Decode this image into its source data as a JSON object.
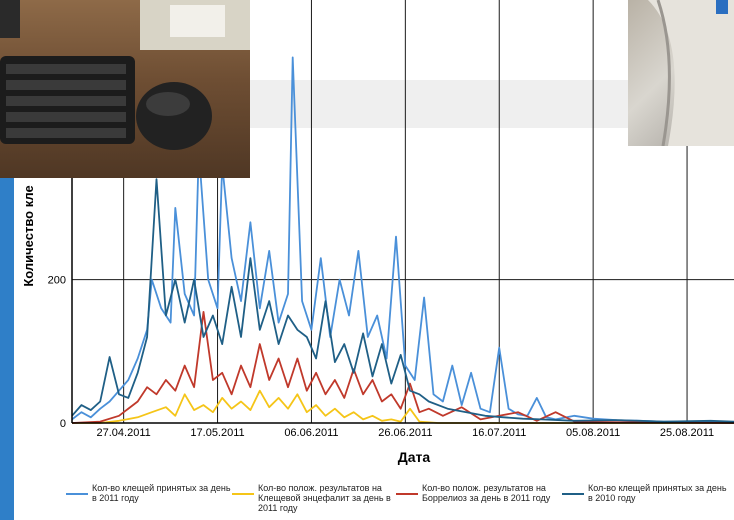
{
  "chart_data": {
    "type": "line",
    "xlabel": "Дата",
    "ylabel": "Количество кле",
    "y_ticks": [
      0,
      200
    ],
    "x_ticks": [
      "27.04.2011",
      "17.05.2011",
      "06.06.2011",
      "26.06.2011",
      "16.07.2011",
      "05.08.2011",
      "25.08.2011"
    ],
    "x_start": "2011-04-16",
    "x_end": "2011-09-04",
    "ylim": [
      0,
      590
    ],
    "grid": true,
    "legend_position": "bottom",
    "series": [
      {
        "name": "Кол-во клещей принятых за день в 2011 году",
        "color": "#4a90d9",
        "points": [
          [
            "2011-04-16",
            5
          ],
          [
            "2011-04-18",
            15
          ],
          [
            "2011-04-20",
            8
          ],
          [
            "2011-04-22",
            20
          ],
          [
            "2011-04-24",
            30
          ],
          [
            "2011-04-26",
            45
          ],
          [
            "2011-04-28",
            60
          ],
          [
            "2011-04-30",
            90
          ],
          [
            "2011-05-02",
            130
          ],
          [
            "2011-05-03",
            200
          ],
          [
            "2011-05-05",
            160
          ],
          [
            "2011-05-07",
            140
          ],
          [
            "2011-05-08",
            300
          ],
          [
            "2011-05-10",
            180
          ],
          [
            "2011-05-12",
            150
          ],
          [
            "2011-05-13",
            380
          ],
          [
            "2011-05-15",
            200
          ],
          [
            "2011-05-17",
            160
          ],
          [
            "2011-05-18",
            360
          ],
          [
            "2011-05-20",
            230
          ],
          [
            "2011-05-22",
            170
          ],
          [
            "2011-05-24",
            280
          ],
          [
            "2011-05-26",
            160
          ],
          [
            "2011-05-28",
            240
          ],
          [
            "2011-05-30",
            140
          ],
          [
            "2011-06-01",
            180
          ],
          [
            "2011-06-02",
            510
          ],
          [
            "2011-06-04",
            170
          ],
          [
            "2011-06-06",
            130
          ],
          [
            "2011-06-08",
            230
          ],
          [
            "2011-06-10",
            120
          ],
          [
            "2011-06-12",
            200
          ],
          [
            "2011-06-14",
            150
          ],
          [
            "2011-06-16",
            240
          ],
          [
            "2011-06-18",
            120
          ],
          [
            "2011-06-20",
            150
          ],
          [
            "2011-06-22",
            90
          ],
          [
            "2011-06-24",
            260
          ],
          [
            "2011-06-26",
            80
          ],
          [
            "2011-06-28",
            60
          ],
          [
            "2011-06-30",
            175
          ],
          [
            "2011-07-02",
            40
          ],
          [
            "2011-07-04",
            30
          ],
          [
            "2011-07-06",
            80
          ],
          [
            "2011-07-08",
            25
          ],
          [
            "2011-07-10",
            70
          ],
          [
            "2011-07-12",
            20
          ],
          [
            "2011-07-14",
            15
          ],
          [
            "2011-07-16",
            105
          ],
          [
            "2011-07-18",
            20
          ],
          [
            "2011-07-20",
            12
          ],
          [
            "2011-07-22",
            10
          ],
          [
            "2011-07-24",
            35
          ],
          [
            "2011-07-26",
            8
          ],
          [
            "2011-07-28",
            5
          ],
          [
            "2011-08-01",
            10
          ],
          [
            "2011-08-05",
            6
          ],
          [
            "2011-08-10",
            4
          ],
          [
            "2011-08-15",
            3
          ],
          [
            "2011-08-20",
            2
          ],
          [
            "2011-08-25",
            2
          ],
          [
            "2011-08-30",
            1
          ],
          [
            "2011-09-04",
            1
          ]
        ]
      },
      {
        "name": "Кол-во полож. результатов на Клещевой энцефалит за день в 2011 году",
        "color": "#f5c518",
        "points": [
          [
            "2011-04-16",
            0
          ],
          [
            "2011-04-22",
            0
          ],
          [
            "2011-04-26",
            3
          ],
          [
            "2011-04-30",
            8
          ],
          [
            "2011-05-03",
            15
          ],
          [
            "2011-05-06",
            22
          ],
          [
            "2011-05-08",
            10
          ],
          [
            "2011-05-10",
            40
          ],
          [
            "2011-05-12",
            18
          ],
          [
            "2011-05-14",
            25
          ],
          [
            "2011-05-16",
            15
          ],
          [
            "2011-05-18",
            35
          ],
          [
            "2011-05-20",
            20
          ],
          [
            "2011-05-22",
            30
          ],
          [
            "2011-05-24",
            18
          ],
          [
            "2011-05-26",
            45
          ],
          [
            "2011-05-28",
            22
          ],
          [
            "2011-05-30",
            35
          ],
          [
            "2011-06-01",
            20
          ],
          [
            "2011-06-03",
            40
          ],
          [
            "2011-06-05",
            15
          ],
          [
            "2011-06-07",
            25
          ],
          [
            "2011-06-09",
            10
          ],
          [
            "2011-06-11",
            20
          ],
          [
            "2011-06-13",
            8
          ],
          [
            "2011-06-15",
            15
          ],
          [
            "2011-06-17",
            5
          ],
          [
            "2011-06-19",
            10
          ],
          [
            "2011-06-21",
            3
          ],
          [
            "2011-06-23",
            5
          ],
          [
            "2011-06-25",
            2
          ],
          [
            "2011-06-27",
            20
          ],
          [
            "2011-06-29",
            2
          ],
          [
            "2011-07-03",
            0
          ],
          [
            "2011-09-04",
            0
          ]
        ]
      },
      {
        "name": "Кол-во полож. результатов на Боррелиоз за день в 2011 году",
        "color": "#c0392b",
        "points": [
          [
            "2011-04-16",
            0
          ],
          [
            "2011-04-22",
            2
          ],
          [
            "2011-04-26",
            10
          ],
          [
            "2011-04-30",
            30
          ],
          [
            "2011-05-02",
            50
          ],
          [
            "2011-05-04",
            40
          ],
          [
            "2011-05-06",
            60
          ],
          [
            "2011-05-08",
            45
          ],
          [
            "2011-05-10",
            80
          ],
          [
            "2011-05-12",
            50
          ],
          [
            "2011-05-14",
            155
          ],
          [
            "2011-05-16",
            60
          ],
          [
            "2011-05-18",
            70
          ],
          [
            "2011-05-20",
            40
          ],
          [
            "2011-05-22",
            80
          ],
          [
            "2011-05-24",
            50
          ],
          [
            "2011-05-26",
            110
          ],
          [
            "2011-05-28",
            60
          ],
          [
            "2011-05-30",
            90
          ],
          [
            "2011-06-01",
            50
          ],
          [
            "2011-06-03",
            90
          ],
          [
            "2011-06-05",
            45
          ],
          [
            "2011-06-07",
            70
          ],
          [
            "2011-06-09",
            40
          ],
          [
            "2011-06-11",
            60
          ],
          [
            "2011-06-13",
            35
          ],
          [
            "2011-06-15",
            75
          ],
          [
            "2011-06-17",
            40
          ],
          [
            "2011-06-19",
            60
          ],
          [
            "2011-06-21",
            30
          ],
          [
            "2011-06-23",
            40
          ],
          [
            "2011-06-25",
            20
          ],
          [
            "2011-06-27",
            55
          ],
          [
            "2011-06-29",
            15
          ],
          [
            "2011-07-01",
            20
          ],
          [
            "2011-07-04",
            10
          ],
          [
            "2011-07-08",
            22
          ],
          [
            "2011-07-12",
            5
          ],
          [
            "2011-07-16",
            10
          ],
          [
            "2011-07-20",
            15
          ],
          [
            "2011-07-24",
            3
          ],
          [
            "2011-07-28",
            15
          ],
          [
            "2011-08-01",
            2
          ],
          [
            "2011-08-10",
            1
          ],
          [
            "2011-09-04",
            0
          ]
        ]
      },
      {
        "name": "Кол-во клещей принятых за день в 2010 году",
        "color": "#1f5f86",
        "points": [
          [
            "2011-04-16",
            10
          ],
          [
            "2011-04-18",
            25
          ],
          [
            "2011-04-20",
            18
          ],
          [
            "2011-04-22",
            30
          ],
          [
            "2011-04-24",
            92
          ],
          [
            "2011-04-26",
            40
          ],
          [
            "2011-04-28",
            35
          ],
          [
            "2011-04-30",
            70
          ],
          [
            "2011-05-02",
            120
          ],
          [
            "2011-05-04",
            340
          ],
          [
            "2011-05-06",
            150
          ],
          [
            "2011-05-08",
            200
          ],
          [
            "2011-05-10",
            140
          ],
          [
            "2011-05-12",
            200
          ],
          [
            "2011-05-14",
            120
          ],
          [
            "2011-05-16",
            150
          ],
          [
            "2011-05-18",
            110
          ],
          [
            "2011-05-20",
            190
          ],
          [
            "2011-05-22",
            120
          ],
          [
            "2011-05-24",
            230
          ],
          [
            "2011-05-26",
            130
          ],
          [
            "2011-05-28",
            170
          ],
          [
            "2011-05-30",
            110
          ],
          [
            "2011-06-01",
            150
          ],
          [
            "2011-06-03",
            130
          ],
          [
            "2011-06-05",
            120
          ],
          [
            "2011-06-07",
            90
          ],
          [
            "2011-06-09",
            170
          ],
          [
            "2011-06-11",
            85
          ],
          [
            "2011-06-13",
            110
          ],
          [
            "2011-06-15",
            70
          ],
          [
            "2011-06-17",
            125
          ],
          [
            "2011-06-19",
            65
          ],
          [
            "2011-06-21",
            110
          ],
          [
            "2011-06-23",
            55
          ],
          [
            "2011-06-25",
            95
          ],
          [
            "2011-06-27",
            45
          ],
          [
            "2011-06-29",
            40
          ],
          [
            "2011-07-01",
            30
          ],
          [
            "2011-07-05",
            20
          ],
          [
            "2011-07-09",
            15
          ],
          [
            "2011-07-13",
            10
          ],
          [
            "2011-07-17",
            8
          ],
          [
            "2011-07-21",
            6
          ],
          [
            "2011-07-25",
            5
          ],
          [
            "2011-08-01",
            3
          ],
          [
            "2011-08-10",
            4
          ],
          [
            "2011-08-20",
            2
          ],
          [
            "2011-08-30",
            3
          ],
          [
            "2011-09-04",
            2
          ]
        ]
      }
    ]
  },
  "legend": [
    {
      "label": "Кол-во клещей принятых за день в 2011 году",
      "color": "#4a90d9"
    },
    {
      "label": "Кол-во полож. результатов на Клещевой энцефалит за день в 2011 году",
      "color": "#f5c518"
    },
    {
      "label": "Кол-во полож. результатов на Боррелиоз за день в 2011 году",
      "color": "#c0392b"
    },
    {
      "label": "Кол-во клещей принятых за день в 2010 году",
      "color": "#1f5f86"
    }
  ],
  "photos": {
    "keyboard_icon": "keyboard-mouse-photo",
    "person_icon": "person-coat-photo"
  }
}
